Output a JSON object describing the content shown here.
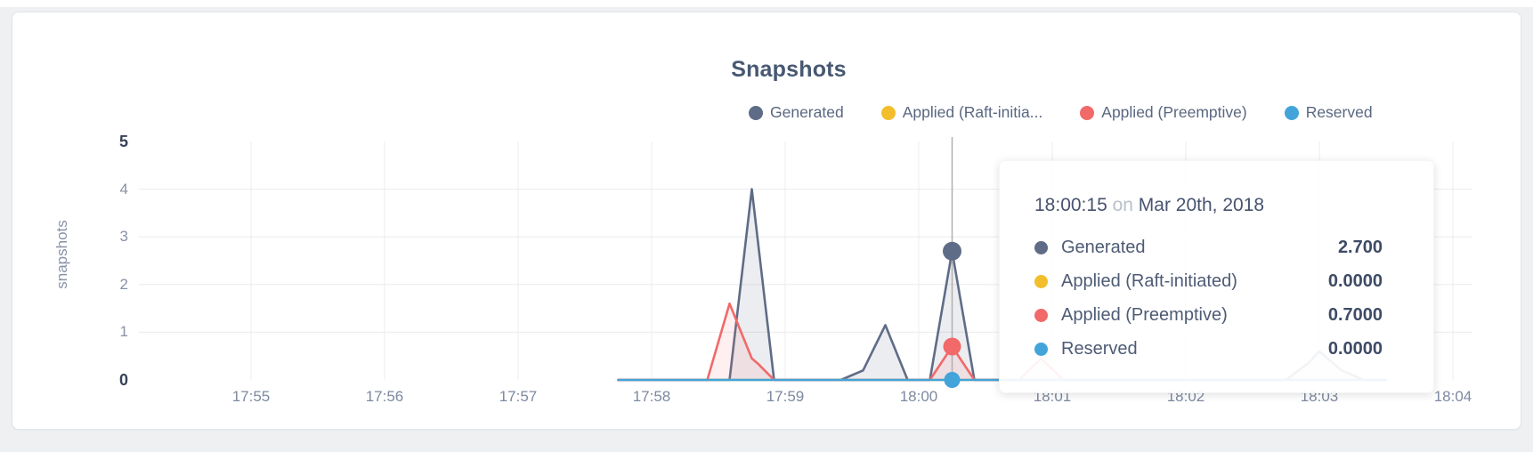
{
  "title": "Snapshots",
  "legend": {
    "items": [
      {
        "label": "Generated",
        "color": "#5f6c87"
      },
      {
        "label": "Applied (Raft-initia...",
        "color": "#f2be2c"
      },
      {
        "label": "Applied (Preemptive)",
        "color": "#f16969"
      },
      {
        "label": "Reserved",
        "color": "#43a4d9"
      }
    ]
  },
  "y_axis": {
    "label": "snapshots",
    "ticks": [
      5,
      4,
      3,
      2,
      1,
      0
    ],
    "min": 0,
    "max": 5
  },
  "x_axis": {
    "ticks": [
      "17:55",
      "17:56",
      "17:57",
      "17:58",
      "17:59",
      "18:00",
      "18:01",
      "18:02",
      "18:03",
      "18:04"
    ]
  },
  "tooltip": {
    "time": "18:00:15",
    "connector": "on",
    "date": "Mar 20th, 2018",
    "rows": [
      {
        "label": "Generated",
        "value": "2.700",
        "color": "#5f6c87"
      },
      {
        "label": "Applied (Raft-initiated)",
        "value": "0.0000",
        "color": "#f2be2c"
      },
      {
        "label": "Applied (Preemptive)",
        "value": "0.7000",
        "color": "#f16969"
      },
      {
        "label": "Reserved",
        "value": "0.0000",
        "color": "#43a4d9"
      }
    ]
  },
  "chart_data": {
    "type": "area",
    "title": "Snapshots",
    "xlabel": "",
    "ylabel": "snapshots",
    "ylim": [
      0,
      5
    ],
    "x_ticks": [
      "17:55",
      "17:56",
      "17:57",
      "17:58",
      "17:59",
      "18:00",
      "18:01",
      "18:02",
      "18:03",
      "18:04"
    ],
    "grid": true,
    "legend_position": "top-right",
    "hover": {
      "time": "18:00:15",
      "date": "Mar 20th, 2018",
      "markers": [
        {
          "series": "Generated",
          "value": 2.7,
          "r": 10.5
        },
        {
          "series": "Applied (Raft-initiated)",
          "value": 0.0,
          "r": 8
        },
        {
          "series": "Applied (Preemptive)",
          "value": 0.7,
          "r": 10
        },
        {
          "series": "Reserved",
          "value": 0.0,
          "r": 9
        }
      ]
    },
    "series": [
      {
        "name": "Generated",
        "color": "#5f6c87",
        "fill_opacity": 0.12,
        "points": [
          [
            "17:57:45",
            0
          ],
          [
            "17:58:35",
            0
          ],
          [
            "17:58:45",
            4.0
          ],
          [
            "17:58:55",
            0
          ],
          [
            "17:59:25",
            0
          ],
          [
            "17:59:35",
            0.2
          ],
          [
            "17:59:45",
            1.15
          ],
          [
            "17:59:55",
            0
          ],
          [
            "18:00:05",
            0
          ],
          [
            "18:00:15",
            2.7
          ],
          [
            "18:00:25",
            0
          ],
          [
            "18:02:45",
            0
          ],
          [
            "18:02:55",
            0.35
          ],
          [
            "18:03:00",
            0.6
          ],
          [
            "18:03:10",
            0.2
          ],
          [
            "18:03:20",
            0
          ],
          [
            "18:03:30",
            0
          ]
        ]
      },
      {
        "name": "Applied (Raft-initiated)",
        "color": "#f2be2c",
        "fill_opacity": 0.1,
        "points": [
          [
            "17:57:45",
            0
          ],
          [
            "18:03:30",
            0
          ]
        ]
      },
      {
        "name": "Applied (Preemptive)",
        "color": "#f16969",
        "fill_opacity": 0.1,
        "points": [
          [
            "17:57:45",
            0
          ],
          [
            "17:58:25",
            0
          ],
          [
            "17:58:35",
            1.6
          ],
          [
            "17:58:45",
            0.45
          ],
          [
            "17:58:48",
            0.33
          ],
          [
            "17:58:55",
            0
          ],
          [
            "18:00:05",
            0
          ],
          [
            "18:00:15",
            0.7
          ],
          [
            "18:00:25",
            0
          ],
          [
            "18:00:45",
            0
          ],
          [
            "18:00:55",
            0.45
          ],
          [
            "18:01:05",
            0
          ],
          [
            "18:03:30",
            0
          ]
        ]
      },
      {
        "name": "Reserved",
        "color": "#43a4d9",
        "fill_opacity": 0.1,
        "points": [
          [
            "17:57:45",
            0
          ],
          [
            "18:03:30",
            0
          ]
        ]
      }
    ]
  },
  "colors": {
    "grid": "#ececec",
    "crosshair": "#b0b0b0",
    "card_background": "#ffffff",
    "page_background": "#eef0f2",
    "title_text": "#475872",
    "axis_text": "#8792a6",
    "axis_text_bold": "#364257"
  }
}
